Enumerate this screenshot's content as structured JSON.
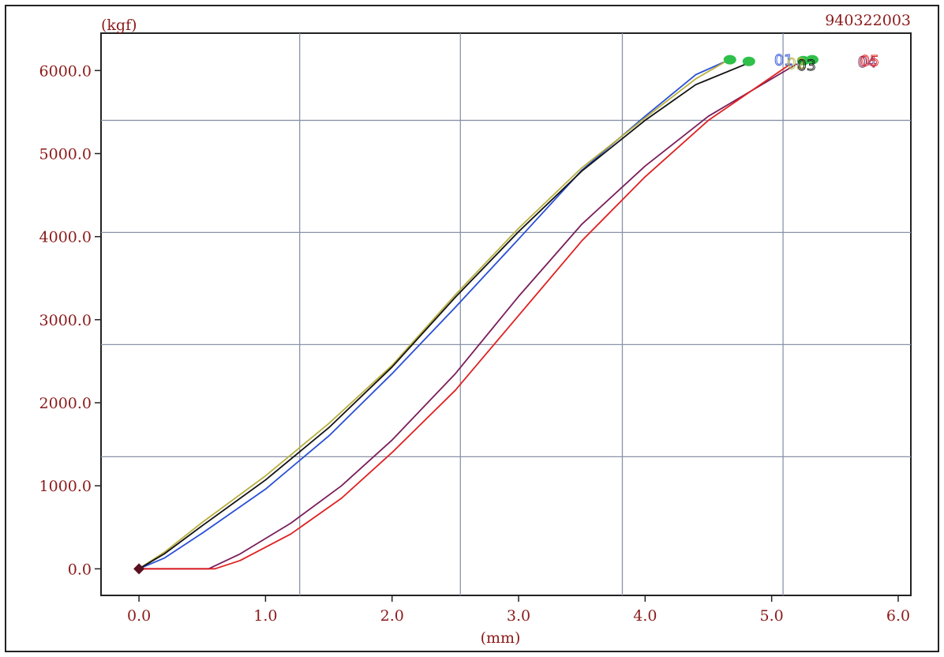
{
  "header": {
    "id_label": "940322003"
  },
  "chart_data": {
    "type": "line",
    "title": "",
    "xlabel": "(mm)",
    "ylabel": "(kgf)",
    "xlim": [
      -0.3,
      6.1
    ],
    "ylim": [
      -320,
      6450
    ],
    "xticks": [
      "0.0",
      "1.0",
      "2.0",
      "3.0",
      "4.0",
      "5.0",
      "6.0"
    ],
    "yticks": [
      "0.0",
      "1000.0",
      "2000.0",
      "3000.0",
      "4000.0",
      "5000.0",
      "6000.0"
    ],
    "xtick_values": [
      0,
      1,
      2,
      3,
      4,
      5,
      6
    ],
    "ytick_values": [
      0,
      1000,
      2000,
      3000,
      4000,
      5000,
      6000
    ],
    "grid": true,
    "grid_x": [
      1.27,
      2.54,
      3.82,
      5.09
    ],
    "grid_y": [
      1350,
      2700,
      4050,
      5400
    ],
    "series": [
      {
        "name": "01",
        "color": "#2a4fd6",
        "x": [
          0,
          0.2,
          0.5,
          1.0,
          1.5,
          2.0,
          2.5,
          3.0,
          3.5,
          4.0,
          4.4,
          4.62
        ],
        "y": [
          0,
          130,
          430,
          960,
          1600,
          2350,
          3150,
          3970,
          4800,
          5450,
          5950,
          6100
        ]
      },
      {
        "name": "02",
        "color": "#b8b040",
        "x": [
          0,
          0.2,
          0.5,
          1.0,
          1.5,
          2.0,
          2.5,
          3.0,
          3.5,
          4.0,
          4.4,
          4.65
        ],
        "y": [
          0,
          200,
          560,
          1120,
          1750,
          2450,
          3300,
          4100,
          4830,
          5430,
          5900,
          6120
        ]
      },
      {
        "name": "03",
        "color": "#111111",
        "x": [
          0,
          0.2,
          0.5,
          1.0,
          1.5,
          2.0,
          2.5,
          3.0,
          3.5,
          4.0,
          4.4,
          4.8
        ],
        "y": [
          0,
          180,
          520,
          1070,
          1700,
          2430,
          3270,
          4060,
          4790,
          5400,
          5830,
          6080
        ]
      },
      {
        "name": "04",
        "color": "#7a1f5a",
        "x": [
          0,
          0.55,
          0.8,
          1.2,
          1.6,
          2.0,
          2.5,
          3.0,
          3.5,
          4.0,
          4.5,
          5.2
        ],
        "y": [
          0,
          0,
          180,
          550,
          1000,
          1550,
          2350,
          3280,
          4150,
          4850,
          5450,
          6080
        ]
      },
      {
        "name": "05",
        "color": "#e02020",
        "x": [
          0,
          0.6,
          0.8,
          1.2,
          1.6,
          2.0,
          2.5,
          3.0,
          3.5,
          4.0,
          4.5,
          5.15
        ],
        "y": [
          0,
          0,
          100,
          420,
          850,
          1400,
          2150,
          3050,
          3950,
          4720,
          5400,
          6080
        ]
      }
    ],
    "break_points": [
      {
        "x": 4.67,
        "y": 6130,
        "color": "#2ec04a"
      },
      {
        "x": 4.82,
        "y": 6110,
        "color": "#2ec04a"
      },
      {
        "x": 5.25,
        "y": 6120,
        "color": "#2ec04a"
      },
      {
        "x": 5.32,
        "y": 6130,
        "color": "#2ec04a"
      }
    ],
    "series_labels": [
      {
        "text": "01",
        "x": 5.02,
        "y": 6130,
        "color": "#2a4fd6"
      },
      {
        "text": "02",
        "x": 5.12,
        "y": 6090,
        "color": "#b8b040"
      },
      {
        "text": "03",
        "x": 5.2,
        "y": 6070,
        "color": "#111111"
      },
      {
        "text": "04",
        "x": 5.68,
        "y": 6110,
        "color": "#7a1f5a"
      },
      {
        "text": "05",
        "x": 5.7,
        "y": 6120,
        "color": "#e02020"
      }
    ],
    "origin_marker": {
      "x": 0,
      "y": 0,
      "color": "#5a1020"
    }
  }
}
